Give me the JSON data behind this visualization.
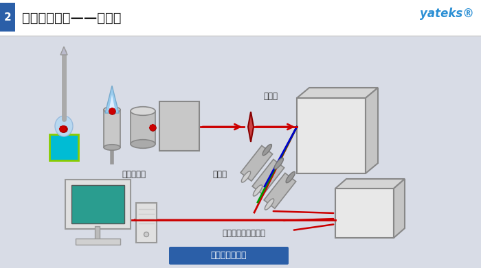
{
  "title": "光谱分析技术——光谱仪",
  "title_number": "2",
  "brand": "yateks®",
  "bg_color": "#d8dce6",
  "header_bg": "#ffffff",
  "title_number_bg": "#2b5fa8",
  "brand_color": "#2b8fd4",
  "bottom_label": "光谱仪工作原理",
  "bottom_label_bg": "#2b5fa8",
  "label_jiguang": "各种激发源",
  "label_fengguangqi": "分光器",
  "label_taocheqi": "探测器",
  "label_xinhao": "信号处理与分析系统",
  "arrow_color": "#cc0000",
  "line_red": "#cc0000",
  "line_green": "#009900",
  "line_blue": "#0000cc",
  "figsize": [
    7.0,
    3.91
  ],
  "dpi": 100
}
